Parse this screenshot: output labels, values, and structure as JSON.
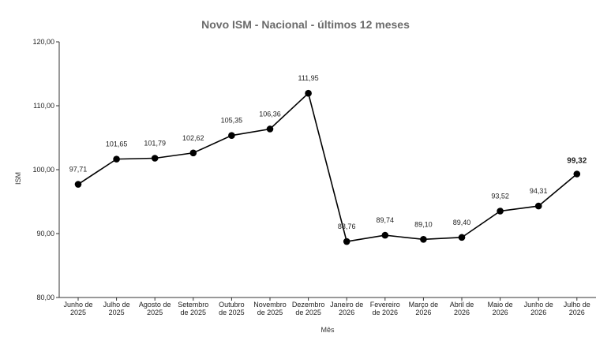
{
  "chart_data": {
    "type": "line",
    "title": "Novo ISM - Nacional - últimos 12 meses",
    "xlabel": "Mês",
    "ylabel": "ISM",
    "ylim": [
      80,
      120
    ],
    "yticks": [
      80,
      90,
      100,
      110,
      120
    ],
    "ytick_labels": [
      "80,00",
      "90,00",
      "100,00",
      "110,00",
      "120,00"
    ],
    "categories": [
      [
        "Junho de",
        "2025"
      ],
      [
        "Julho de",
        "2025"
      ],
      [
        "Agosto de",
        "2025"
      ],
      [
        "Setembro",
        "de 2025"
      ],
      [
        "Outubro",
        "de 2025"
      ],
      [
        "Novembro",
        "de 2025"
      ],
      [
        "Dezembro",
        "de 2025"
      ],
      [
        "Janeiro de",
        "2026"
      ],
      [
        "Fevereiro",
        "de 2026"
      ],
      [
        "Março de",
        "2026"
      ],
      [
        "Abril de",
        "2026"
      ],
      [
        "Maio de",
        "2026"
      ],
      [
        "Junho de",
        "2026"
      ],
      [
        "Julho de",
        "2026"
      ]
    ],
    "series": [
      {
        "values": [
          97.71,
          101.65,
          101.79,
          102.62,
          105.35,
          106.36,
          111.95,
          88.76,
          89.74,
          89.1,
          89.4,
          93.52,
          94.31,
          99.32
        ],
        "labels": [
          "97,71",
          "101,65",
          "101,79",
          "102,62",
          "105,35",
          "106,36",
          "111,95",
          "88,76",
          "89,74",
          "89,10",
          "89,40",
          "93,52",
          "94,31",
          "99,32"
        ],
        "color": "#000000"
      }
    ],
    "highlight_last_label": true,
    "grid": false,
    "legend": "none"
  }
}
